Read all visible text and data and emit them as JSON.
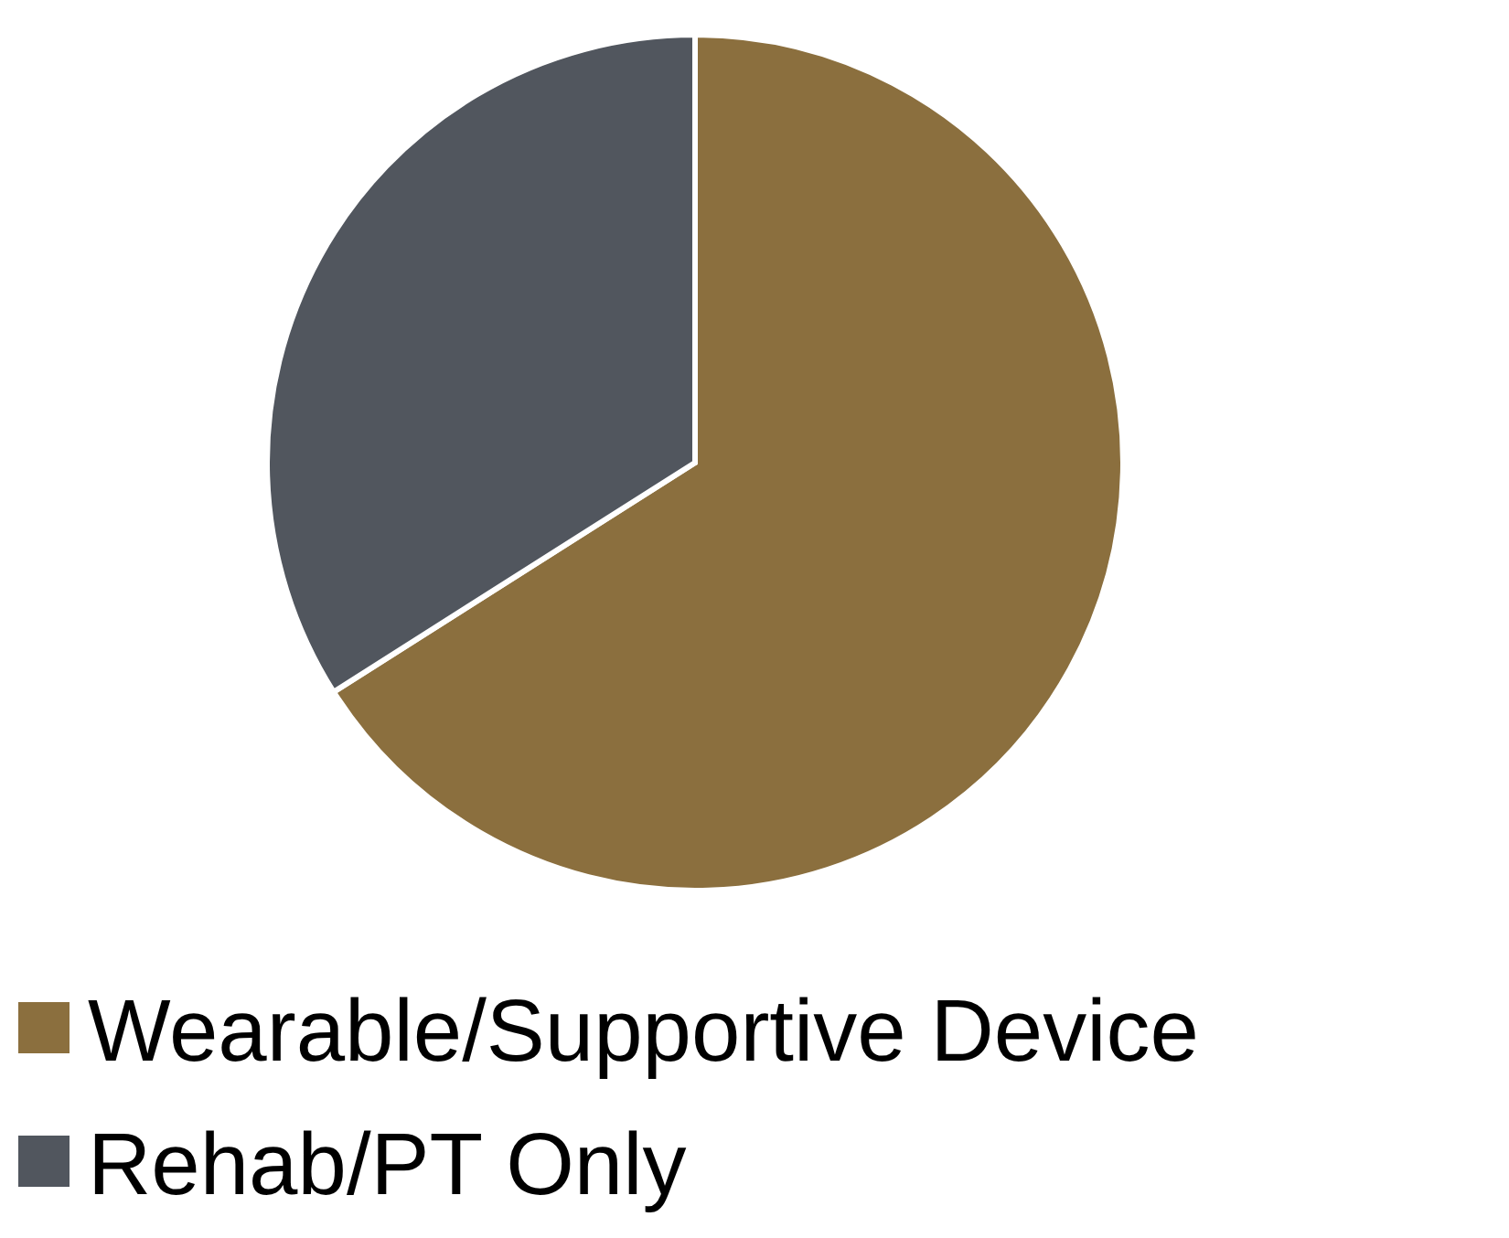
{
  "chart_data": {
    "type": "pie",
    "categories": [
      "Wearable/Supportive Device",
      "Rehab/PT Only"
    ],
    "values": [
      66,
      34
    ],
    "colors": [
      "#8b6f3e",
      "#51565e"
    ],
    "legend": "bottom"
  }
}
